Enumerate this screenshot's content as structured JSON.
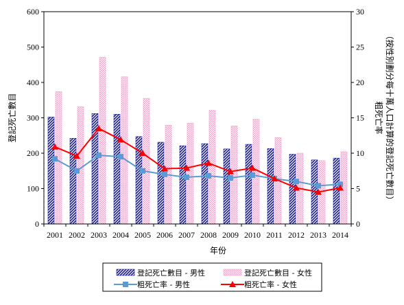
{
  "chart_data": {
    "type": "bar",
    "categories": [
      "2001",
      "2002",
      "2003",
      "2004",
      "2005",
      "2006",
      "2007",
      "2008",
      "2009",
      "2010",
      "2011",
      "2012",
      "2013",
      "2014"
    ],
    "series": [
      {
        "name": "登記死亡數目 - 男性",
        "kind": "bar",
        "axis": "left",
        "color": "#1a1a8c",
        "values": [
          302,
          242,
          312,
          310,
          247,
          231,
          221,
          227,
          212,
          225,
          213,
          197,
          181,
          186
        ]
      },
      {
        "name": "登記死亡數目 - 女性",
        "kind": "bar",
        "axis": "left",
        "color": "#ff99cc",
        "values": [
          374,
          331,
          471,
          416,
          355,
          279,
          285,
          321,
          277,
          296,
          244,
          200,
          179,
          204
        ]
      },
      {
        "name": "粗死亡率 - 男性",
        "kind": "line",
        "axis": "right",
        "color": "#5b9bd5",
        "values": [
          9.2,
          7.5,
          9.7,
          9.5,
          7.5,
          7.0,
          6.6,
          6.8,
          6.5,
          6.9,
          6.4,
          6.0,
          5.4,
          5.6
        ]
      },
      {
        "name": "粗死亡率 - 女性",
        "kind": "line",
        "axis": "right",
        "color": "#ff0000",
        "values": [
          10.9,
          9.6,
          13.5,
          11.9,
          10.0,
          7.8,
          7.9,
          8.6,
          7.4,
          7.9,
          6.4,
          5.1,
          4.5,
          5.1
        ]
      }
    ],
    "ylabel": "登記死亡數目",
    "ylabel_right": "粗死亡率\n（按性別劃分每十萬人口計算的登記死亡數目）",
    "xlabel": "年份",
    "ylim": [
      0,
      600
    ],
    "ylim_right": [
      0,
      30
    ],
    "y_ticks": [
      "0",
      "100",
      "200",
      "300",
      "400",
      "500",
      "600"
    ],
    "y_ticks_right": [
      "0",
      "5",
      "10",
      "15",
      "20",
      "25",
      "30"
    ],
    "grid": false,
    "legend_position": "bottom"
  }
}
